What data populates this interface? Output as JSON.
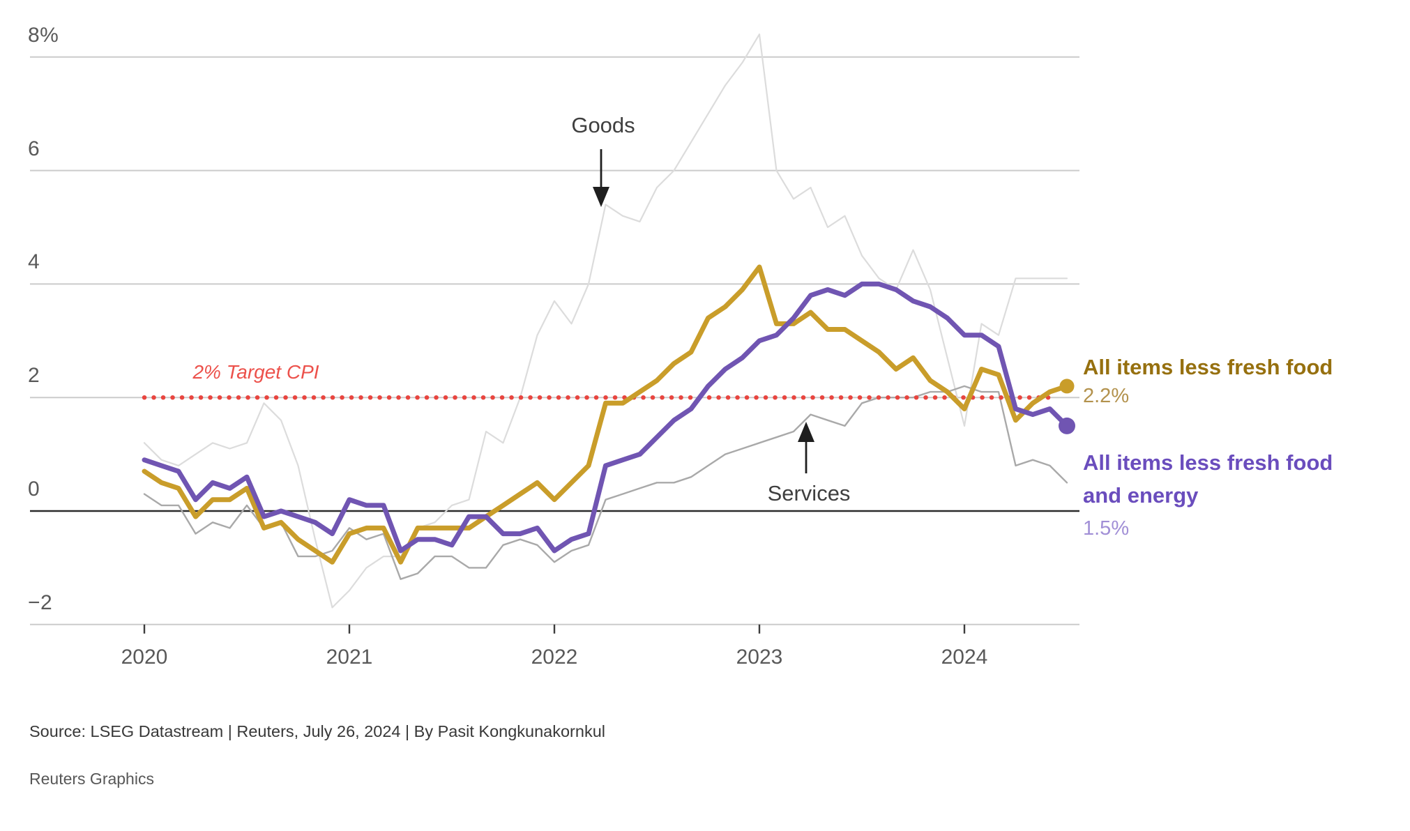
{
  "chart_data": {
    "type": "line",
    "title": "",
    "x_unit": "month",
    "months": [
      "2020-01",
      "2020-02",
      "2020-03",
      "2020-04",
      "2020-05",
      "2020-06",
      "2020-07",
      "2020-08",
      "2020-09",
      "2020-10",
      "2020-11",
      "2020-12",
      "2021-01",
      "2021-02",
      "2021-03",
      "2021-04",
      "2021-05",
      "2021-06",
      "2021-07",
      "2021-08",
      "2021-09",
      "2021-10",
      "2021-11",
      "2021-12",
      "2022-01",
      "2022-02",
      "2022-03",
      "2022-04",
      "2022-05",
      "2022-06",
      "2022-07",
      "2022-08",
      "2022-09",
      "2022-10",
      "2022-11",
      "2022-12",
      "2023-01",
      "2023-02",
      "2023-03",
      "2023-04",
      "2023-05",
      "2023-06",
      "2023-07",
      "2023-08",
      "2023-09",
      "2023-10",
      "2023-11",
      "2023-12",
      "2024-01",
      "2024-02",
      "2024-03",
      "2024-04",
      "2024-05",
      "2024-06",
      "2024-07"
    ],
    "series": [
      {
        "name": "Goods",
        "color": "#dcdcdc",
        "width": 2.2,
        "values": [
          1.2,
          0.9,
          0.8,
          1.0,
          1.2,
          1.1,
          1.2,
          1.9,
          1.6,
          0.8,
          -0.5,
          -1.7,
          -1.4,
          -1.0,
          -0.8,
          -0.8,
          -0.3,
          -0.2,
          0.1,
          0.2,
          1.4,
          1.2,
          2.0,
          3.1,
          3.7,
          3.3,
          4.0,
          5.4,
          5.2,
          5.1,
          5.7,
          6.0,
          6.5,
          7.0,
          7.5,
          7.9,
          8.4,
          6.0,
          5.5,
          5.7,
          5.0,
          5.2,
          4.5,
          4.1,
          3.9,
          4.6,
          3.9,
          2.7,
          1.5,
          3.3,
          3.1,
          4.1,
          4.1,
          4.1,
          4.1
        ]
      },
      {
        "name": "Services",
        "color": "#a9a9a9",
        "width": 2.4,
        "values": [
          0.3,
          0.1,
          0.1,
          -0.4,
          -0.2,
          -0.3,
          0.1,
          -0.3,
          -0.2,
          -0.8,
          -0.8,
          -0.7,
          -0.3,
          -0.5,
          -0.4,
          -1.2,
          -1.1,
          -0.8,
          -0.8,
          -1.0,
          -1.0,
          -0.6,
          -0.5,
          -0.6,
          -0.9,
          -0.7,
          -0.6,
          0.2,
          0.3,
          0.4,
          0.5,
          0.5,
          0.6,
          0.8,
          1.0,
          1.1,
          1.2,
          1.3,
          1.4,
          1.7,
          1.6,
          1.5,
          1.9,
          2.0,
          2.0,
          2.0,
          2.1,
          2.1,
          2.2,
          2.1,
          2.1,
          0.8,
          0.9,
          0.8,
          0.5
        ]
      },
      {
        "name": "All items less fresh food",
        "color": "#c99d2a",
        "width": 7,
        "end_dot": true,
        "values": [
          0.7,
          0.5,
          0.4,
          -0.1,
          0.2,
          0.2,
          0.4,
          -0.3,
          -0.2,
          -0.5,
          -0.7,
          -0.9,
          -0.4,
          -0.3,
          -0.3,
          -0.9,
          -0.3,
          -0.3,
          -0.3,
          -0.3,
          -0.1,
          0.1,
          0.3,
          0.5,
          0.2,
          0.5,
          0.8,
          1.9,
          1.9,
          2.1,
          2.3,
          2.6,
          2.8,
          3.4,
          3.6,
          3.9,
          4.3,
          3.3,
          3.3,
          3.5,
          3.2,
          3.2,
          3.0,
          2.8,
          2.5,
          2.7,
          2.3,
          2.1,
          1.8,
          2.5,
          2.4,
          1.6,
          1.9,
          2.1,
          2.2
        ]
      },
      {
        "name": "All items less fresh food and energy",
        "color": "#7055b2",
        "width": 7,
        "end_dot": true,
        "values": [
          0.9,
          0.8,
          0.7,
          0.2,
          0.5,
          0.4,
          0.6,
          -0.1,
          0.0,
          -0.1,
          -0.2,
          -0.4,
          0.2,
          0.1,
          0.1,
          -0.7,
          -0.5,
          -0.5,
          -0.6,
          -0.1,
          -0.1,
          -0.4,
          -0.4,
          -0.3,
          -0.7,
          -0.5,
          -0.4,
          0.8,
          0.9,
          1.0,
          1.3,
          1.6,
          1.8,
          2.2,
          2.5,
          2.7,
          3.0,
          3.1,
          3.4,
          3.8,
          3.9,
          3.8,
          4.0,
          4.0,
          3.9,
          3.7,
          3.6,
          3.4,
          3.1,
          3.1,
          2.9,
          1.8,
          1.7,
          1.8,
          1.5
        ]
      }
    ],
    "y_ticks": [
      {
        "value": 8,
        "label": "8%"
      },
      {
        "value": 6,
        "label": "6"
      },
      {
        "value": 4,
        "label": "4"
      },
      {
        "value": 2,
        "label": "2"
      },
      {
        "value": 0,
        "label": "0"
      },
      {
        "value": -2,
        "label": "−2"
      }
    ],
    "x_ticks": [
      "2020",
      "2021",
      "2022",
      "2023",
      "2024"
    ],
    "ylim": [
      -2.4,
      8.6
    ],
    "grid": "horizontal",
    "target_line": {
      "value": 2,
      "label": "2% Target CPI",
      "color": "#e8453f",
      "style": "dotted"
    },
    "annotations": [
      {
        "label": "Goods",
        "arrow": "down",
        "points_to": {
          "month": "2022-04",
          "value": 5.4
        }
      },
      {
        "label": "Services",
        "arrow": "up",
        "points_to": {
          "month": "2023-04",
          "value": 1.7
        }
      }
    ],
    "legend_position": "right"
  },
  "legend": {
    "items": [
      {
        "label": "All items less fresh food",
        "value": "2.2%",
        "title_color": "#96700f",
        "value_color": "#b3924d"
      },
      {
        "label": "All items less fresh food and energy",
        "value": "1.5%",
        "title_color": "#6a4dbd",
        "value_color": "#a18fd6"
      }
    ]
  },
  "footer": {
    "source": "Source: LSEG Datastream | Reuters, July 26, 2024 | By Pasit Kongkunakornkul",
    "credit": "Reuters Graphics"
  }
}
